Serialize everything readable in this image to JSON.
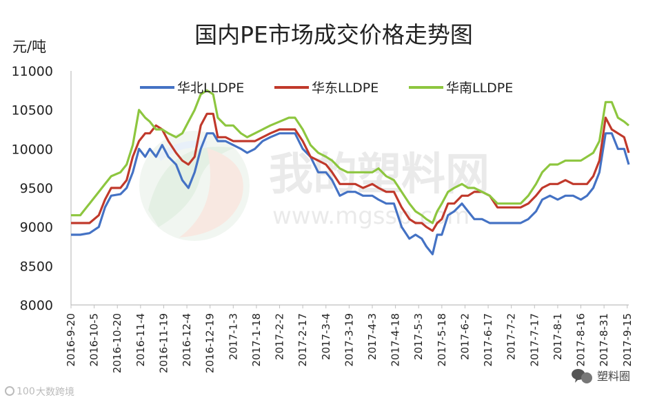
{
  "chart_data": {
    "type": "line",
    "title": "国内PE市场成交价格走势图",
    "ylabel": "元/吨",
    "ylim": [
      8000,
      11000
    ],
    "yticks": [
      "11000",
      "10500",
      "10000",
      "9500",
      "9000",
      "8500",
      "8000"
    ],
    "x_tick_labels": [
      "2016-9-20",
      "2016-10-5",
      "2016-10-20",
      "2016-11-4",
      "2016-11-19",
      "2016-12-4",
      "2016-12-19",
      "2017-1-3",
      "2017-1-18",
      "2017-2-2",
      "2017-2-17",
      "2017-3-4",
      "2017-3-19",
      "2017-4-3",
      "2017-4-18",
      "2017-5-3",
      "2017-5-18",
      "2017-6-2",
      "2017-6-17",
      "2017-7-2",
      "2017-7-17",
      "2017-8-1",
      "2017-8-16",
      "2017-8-31",
      "2017-9-15"
    ],
    "x_ticks": [
      "2016-09-20",
      "2016-10-05",
      "2016-10-20",
      "2016-11-04",
      "2016-11-19",
      "2016-12-04",
      "2016-12-19",
      "2017-01-03",
      "2017-01-18",
      "2017-02-02",
      "2017-02-17",
      "2017-03-04",
      "2017-03-19",
      "2017-04-03",
      "2017-04-18",
      "2017-05-03",
      "2017-05-18",
      "2017-06-02",
      "2017-06-17",
      "2017-07-02",
      "2017-07-17",
      "2017-08-01",
      "2017-08-16",
      "2017-08-31",
      "2017-09-15"
    ],
    "legend_position": "top",
    "grid": false,
    "series": [
      {
        "name": "华北LLDPE",
        "color": "#4472c4",
        "points": [
          [
            "2016-09-20",
            8900
          ],
          [
            "2016-09-26",
            8900
          ],
          [
            "2016-10-02",
            8920
          ],
          [
            "2016-10-08",
            9000
          ],
          [
            "2016-10-12",
            9250
          ],
          [
            "2016-10-16",
            9400
          ],
          [
            "2016-10-22",
            9420
          ],
          [
            "2016-10-26",
            9500
          ],
          [
            "2016-10-30",
            9700
          ],
          [
            "2016-11-03",
            10000
          ],
          [
            "2016-11-07",
            9900
          ],
          [
            "2016-11-10",
            10000
          ],
          [
            "2016-11-14",
            9900
          ],
          [
            "2016-11-18",
            10050
          ],
          [
            "2016-11-22",
            9900
          ],
          [
            "2016-11-27",
            9800
          ],
          [
            "2016-12-01",
            9600
          ],
          [
            "2016-12-05",
            9500
          ],
          [
            "2016-12-09",
            9700
          ],
          [
            "2016-12-13",
            10000
          ],
          [
            "2016-12-17",
            10200
          ],
          [
            "2016-12-21",
            10200
          ],
          [
            "2016-12-24",
            10100
          ],
          [
            "2016-12-29",
            10100
          ],
          [
            "2017-01-03",
            10050
          ],
          [
            "2017-01-08",
            10000
          ],
          [
            "2017-01-12",
            9950
          ],
          [
            "2017-01-17",
            10000
          ],
          [
            "2017-01-22",
            10100
          ],
          [
            "2017-01-27",
            10150
          ],
          [
            "2017-02-02",
            10200
          ],
          [
            "2017-02-08",
            10200
          ],
          [
            "2017-02-12",
            10200
          ],
          [
            "2017-02-17",
            10000
          ],
          [
            "2017-02-22",
            9900
          ],
          [
            "2017-02-27",
            9700
          ],
          [
            "2017-03-04",
            9700
          ],
          [
            "2017-03-08",
            9600
          ],
          [
            "2017-03-13",
            9400
          ],
          [
            "2017-03-18",
            9450
          ],
          [
            "2017-03-23",
            9450
          ],
          [
            "2017-03-28",
            9400
          ],
          [
            "2017-04-03",
            9400
          ],
          [
            "2017-04-07",
            9350
          ],
          [
            "2017-04-12",
            9300
          ],
          [
            "2017-04-17",
            9300
          ],
          [
            "2017-04-22",
            9000
          ],
          [
            "2017-04-27",
            8850
          ],
          [
            "2017-05-01",
            8900
          ],
          [
            "2017-05-05",
            8850
          ],
          [
            "2017-05-08",
            8750
          ],
          [
            "2017-05-12",
            8650
          ],
          [
            "2017-05-15",
            8900
          ],
          [
            "2017-05-18",
            8900
          ],
          [
            "2017-05-22",
            9150
          ],
          [
            "2017-05-26",
            9200
          ],
          [
            "2017-05-31",
            9300
          ],
          [
            "2017-06-04",
            9200
          ],
          [
            "2017-06-08",
            9100
          ],
          [
            "2017-06-13",
            9100
          ],
          [
            "2017-06-18",
            9050
          ],
          [
            "2017-06-23",
            9050
          ],
          [
            "2017-06-28",
            9050
          ],
          [
            "2017-07-03",
            9050
          ],
          [
            "2017-07-08",
            9050
          ],
          [
            "2017-07-13",
            9100
          ],
          [
            "2017-07-18",
            9200
          ],
          [
            "2017-07-22",
            9350
          ],
          [
            "2017-07-27",
            9400
          ],
          [
            "2017-08-01",
            9350
          ],
          [
            "2017-08-06",
            9400
          ],
          [
            "2017-08-11",
            9400
          ],
          [
            "2017-08-16",
            9350
          ],
          [
            "2017-08-20",
            9400
          ],
          [
            "2017-08-24",
            9500
          ],
          [
            "2017-08-28",
            9700
          ],
          [
            "2017-09-01",
            10200
          ],
          [
            "2017-09-05",
            10200
          ],
          [
            "2017-09-09",
            10000
          ],
          [
            "2017-09-13",
            10000
          ],
          [
            "2017-09-16",
            9800
          ]
        ]
      },
      {
        "name": "华东LLDPE",
        "color": "#c0392b",
        "points": [
          [
            "2016-09-20",
            9050
          ],
          [
            "2016-09-26",
            9050
          ],
          [
            "2016-10-02",
            9050
          ],
          [
            "2016-10-08",
            9150
          ],
          [
            "2016-10-12",
            9350
          ],
          [
            "2016-10-16",
            9500
          ],
          [
            "2016-10-22",
            9500
          ],
          [
            "2016-10-26",
            9600
          ],
          [
            "2016-10-30",
            9900
          ],
          [
            "2016-11-03",
            10100
          ],
          [
            "2016-11-07",
            10200
          ],
          [
            "2016-11-10",
            10200
          ],
          [
            "2016-11-14",
            10300
          ],
          [
            "2016-11-18",
            10250
          ],
          [
            "2016-11-22",
            10100
          ],
          [
            "2016-11-27",
            9950
          ],
          [
            "2016-12-01",
            9850
          ],
          [
            "2016-12-05",
            9800
          ],
          [
            "2016-12-09",
            9900
          ],
          [
            "2016-12-13",
            10300
          ],
          [
            "2016-12-17",
            10450
          ],
          [
            "2016-12-21",
            10450
          ],
          [
            "2016-12-24",
            10150
          ],
          [
            "2016-12-29",
            10150
          ],
          [
            "2017-01-03",
            10100
          ],
          [
            "2017-01-08",
            10100
          ],
          [
            "2017-01-12",
            10100
          ],
          [
            "2017-01-17",
            10100
          ],
          [
            "2017-01-22",
            10150
          ],
          [
            "2017-01-27",
            10200
          ],
          [
            "2017-02-02",
            10250
          ],
          [
            "2017-02-08",
            10250
          ],
          [
            "2017-02-12",
            10250
          ],
          [
            "2017-02-17",
            10100
          ],
          [
            "2017-02-22",
            9900
          ],
          [
            "2017-02-27",
            9850
          ],
          [
            "2017-03-04",
            9800
          ],
          [
            "2017-03-08",
            9700
          ],
          [
            "2017-03-13",
            9550
          ],
          [
            "2017-03-18",
            9550
          ],
          [
            "2017-03-23",
            9550
          ],
          [
            "2017-03-28",
            9500
          ],
          [
            "2017-04-03",
            9550
          ],
          [
            "2017-04-07",
            9500
          ],
          [
            "2017-04-12",
            9450
          ],
          [
            "2017-04-17",
            9450
          ],
          [
            "2017-04-22",
            9250
          ],
          [
            "2017-04-27",
            9100
          ],
          [
            "2017-05-01",
            9050
          ],
          [
            "2017-05-05",
            9050
          ],
          [
            "2017-05-08",
            9000
          ],
          [
            "2017-05-12",
            8950
          ],
          [
            "2017-05-15",
            9050
          ],
          [
            "2017-05-18",
            9100
          ],
          [
            "2017-05-22",
            9300
          ],
          [
            "2017-05-26",
            9300
          ],
          [
            "2017-05-31",
            9400
          ],
          [
            "2017-06-04",
            9400
          ],
          [
            "2017-06-08",
            9450
          ],
          [
            "2017-06-13",
            9450
          ],
          [
            "2017-06-18",
            9400
          ],
          [
            "2017-06-23",
            9250
          ],
          [
            "2017-06-28",
            9250
          ],
          [
            "2017-07-03",
            9250
          ],
          [
            "2017-07-08",
            9250
          ],
          [
            "2017-07-13",
            9300
          ],
          [
            "2017-07-18",
            9400
          ],
          [
            "2017-07-22",
            9500
          ],
          [
            "2017-07-27",
            9550
          ],
          [
            "2017-08-01",
            9550
          ],
          [
            "2017-08-06",
            9600
          ],
          [
            "2017-08-11",
            9550
          ],
          [
            "2017-08-16",
            9550
          ],
          [
            "2017-08-20",
            9550
          ],
          [
            "2017-08-24",
            9650
          ],
          [
            "2017-08-28",
            9850
          ],
          [
            "2017-09-01",
            10400
          ],
          [
            "2017-09-05",
            10250
          ],
          [
            "2017-09-09",
            10200
          ],
          [
            "2017-09-13",
            10150
          ],
          [
            "2017-09-16",
            9950
          ]
        ]
      },
      {
        "name": "华南LLDPE",
        "color": "#8dc63f",
        "points": [
          [
            "2016-09-20",
            9150
          ],
          [
            "2016-09-26",
            9150
          ],
          [
            "2016-10-02",
            9300
          ],
          [
            "2016-10-08",
            9450
          ],
          [
            "2016-10-12",
            9550
          ],
          [
            "2016-10-16",
            9650
          ],
          [
            "2016-10-22",
            9700
          ],
          [
            "2016-10-26",
            9800
          ],
          [
            "2016-10-30",
            10050
          ],
          [
            "2016-11-03",
            10500
          ],
          [
            "2016-11-07",
            10400
          ],
          [
            "2016-11-10",
            10350
          ],
          [
            "2016-11-14",
            10250
          ],
          [
            "2016-11-18",
            10250
          ],
          [
            "2016-11-22",
            10200
          ],
          [
            "2016-11-27",
            10150
          ],
          [
            "2016-12-01",
            10200
          ],
          [
            "2016-12-05",
            10350
          ],
          [
            "2016-12-09",
            10500
          ],
          [
            "2016-12-13",
            10700
          ],
          [
            "2016-12-17",
            10750
          ],
          [
            "2016-12-21",
            10700
          ],
          [
            "2016-12-24",
            10400
          ],
          [
            "2016-12-29",
            10300
          ],
          [
            "2017-01-03",
            10300
          ],
          [
            "2017-01-08",
            10200
          ],
          [
            "2017-01-12",
            10150
          ],
          [
            "2017-01-17",
            10200
          ],
          [
            "2017-01-22",
            10250
          ],
          [
            "2017-01-27",
            10300
          ],
          [
            "2017-02-02",
            10350
          ],
          [
            "2017-02-08",
            10400
          ],
          [
            "2017-02-12",
            10400
          ],
          [
            "2017-02-17",
            10250
          ],
          [
            "2017-02-22",
            10050
          ],
          [
            "2017-02-27",
            9950
          ],
          [
            "2017-03-04",
            9900
          ],
          [
            "2017-03-08",
            9850
          ],
          [
            "2017-03-13",
            9750
          ],
          [
            "2017-03-18",
            9700
          ],
          [
            "2017-03-23",
            9700
          ],
          [
            "2017-03-28",
            9700
          ],
          [
            "2017-04-03",
            9700
          ],
          [
            "2017-04-07",
            9750
          ],
          [
            "2017-04-12",
            9650
          ],
          [
            "2017-04-17",
            9600
          ],
          [
            "2017-04-22",
            9450
          ],
          [
            "2017-04-27",
            9300
          ],
          [
            "2017-05-01",
            9200
          ],
          [
            "2017-05-05",
            9150
          ],
          [
            "2017-05-08",
            9100
          ],
          [
            "2017-05-12",
            9050
          ],
          [
            "2017-05-15",
            9200
          ],
          [
            "2017-05-18",
            9300
          ],
          [
            "2017-05-22",
            9450
          ],
          [
            "2017-05-26",
            9500
          ],
          [
            "2017-05-31",
            9550
          ],
          [
            "2017-06-04",
            9500
          ],
          [
            "2017-06-08",
            9500
          ],
          [
            "2017-06-13",
            9450
          ],
          [
            "2017-06-18",
            9400
          ],
          [
            "2017-06-23",
            9300
          ],
          [
            "2017-06-28",
            9300
          ],
          [
            "2017-07-03",
            9300
          ],
          [
            "2017-07-08",
            9300
          ],
          [
            "2017-07-13",
            9400
          ],
          [
            "2017-07-18",
            9550
          ],
          [
            "2017-07-22",
            9700
          ],
          [
            "2017-07-27",
            9800
          ],
          [
            "2017-08-01",
            9800
          ],
          [
            "2017-08-06",
            9850
          ],
          [
            "2017-08-11",
            9850
          ],
          [
            "2017-08-16",
            9850
          ],
          [
            "2017-08-20",
            9900
          ],
          [
            "2017-08-24",
            9950
          ],
          [
            "2017-08-28",
            10100
          ],
          [
            "2017-09-01",
            10600
          ],
          [
            "2017-09-05",
            10600
          ],
          [
            "2017-09-09",
            10400
          ],
          [
            "2017-09-13",
            10350
          ],
          [
            "2017-09-16",
            10300
          ]
        ]
      }
    ]
  },
  "watermark": {
    "text": "我的塑料网",
    "url": "www.mgssp.com"
  },
  "corner_left": "大数跨境",
  "corner_right": "塑料圈"
}
